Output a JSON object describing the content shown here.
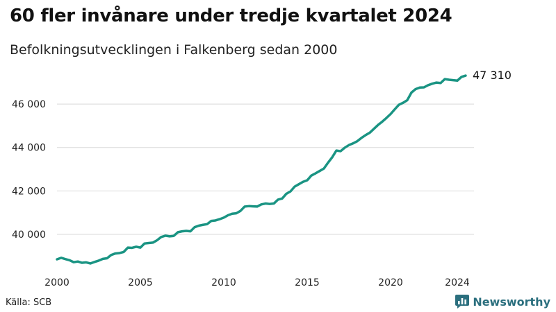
{
  "title": "60 fler invånare under tredje kvartalet 2024",
  "subtitle": "Befolkningsutvecklingen i Falkenberg sedan 2000",
  "source": "Källa: SCB",
  "brand": {
    "name": "Newsworthy",
    "icon": "bar-chart-logo-icon",
    "color": "#2b6f7e"
  },
  "chart_data": {
    "type": "line",
    "series_color": "#1a9483",
    "grid": true,
    "grid_axis": "y",
    "xlim": [
      2000,
      2025
    ],
    "ylim": [
      38500,
      47600
    ],
    "x_ticks": [
      2000,
      2005,
      2010,
      2015,
      2020,
      2024
    ],
    "x_tick_labels": [
      "2000",
      "2005",
      "2010",
      "2015",
      "2020",
      "2024"
    ],
    "y_ticks": [
      40000,
      42000,
      44000,
      46000
    ],
    "y_tick_labels": [
      "40 000",
      "42 000",
      "44 000",
      "46 000"
    ],
    "end_label": "47 310",
    "series": [
      {
        "x": [
          2000.0,
          2000.25,
          2000.5,
          2000.75,
          2001.0,
          2001.25,
          2001.5,
          2001.75,
          2002.0,
          2002.25,
          2002.5,
          2002.75,
          2003.0,
          2003.25,
          2003.5,
          2003.75,
          2004.0,
          2004.25,
          2004.5,
          2004.75,
          2005.0,
          2005.25,
          2005.5,
          2005.75,
          2006.0,
          2006.25,
          2006.5,
          2006.75,
          2007.0,
          2007.25,
          2007.5,
          2007.75,
          2008.0,
          2008.25,
          2008.5,
          2008.75,
          2009.0,
          2009.25,
          2009.5,
          2009.75,
          2010.0,
          2010.25,
          2010.5,
          2010.75,
          2011.0,
          2011.25,
          2011.5,
          2011.75,
          2012.0,
          2012.25,
          2012.5,
          2012.75,
          2013.0,
          2013.25,
          2013.5,
          2013.75,
          2014.0,
          2014.25,
          2014.5,
          2014.75,
          2015.0,
          2015.25,
          2015.5,
          2015.75,
          2016.0,
          2016.25,
          2016.5,
          2016.75,
          2017.0,
          2017.25,
          2017.5,
          2017.75,
          2018.0,
          2018.25,
          2018.5,
          2018.75,
          2019.0,
          2019.25,
          2019.5,
          2019.75,
          2020.0,
          2020.25,
          2020.5,
          2020.75,
          2021.0,
          2021.25,
          2021.5,
          2021.75,
          2022.0,
          2022.25,
          2022.5,
          2022.75,
          2023.0,
          2023.25,
          2023.5,
          2023.75,
          2024.0,
          2024.25,
          2024.5
        ],
        "values": [
          38850,
          38920,
          38860,
          38810,
          38720,
          38750,
          38690,
          38710,
          38660,
          38730,
          38790,
          38870,
          38900,
          39050,
          39120,
          39140,
          39190,
          39390,
          39380,
          39430,
          39390,
          39580,
          39600,
          39620,
          39730,
          39880,
          39940,
          39910,
          39930,
          40100,
          40140,
          40160,
          40140,
          40330,
          40400,
          40440,
          40470,
          40620,
          40640,
          40700,
          40770,
          40880,
          40950,
          40970,
          41080,
          41280,
          41300,
          41290,
          41280,
          41380,
          41420,
          41400,
          41420,
          41600,
          41650,
          41870,
          41980,
          42200,
          42310,
          42420,
          42490,
          42710,
          42810,
          42920,
          43030,
          43300,
          43550,
          43860,
          43830,
          43990,
          44110,
          44190,
          44290,
          44440,
          44570,
          44680,
          44860,
          45040,
          45190,
          45360,
          45540,
          45760,
          45970,
          46060,
          46180,
          46530,
          46690,
          46760,
          46770,
          46870,
          46940,
          46990,
          46970,
          47150,
          47120,
          47100,
          47080,
          47250,
          47310
        ]
      }
    ]
  }
}
